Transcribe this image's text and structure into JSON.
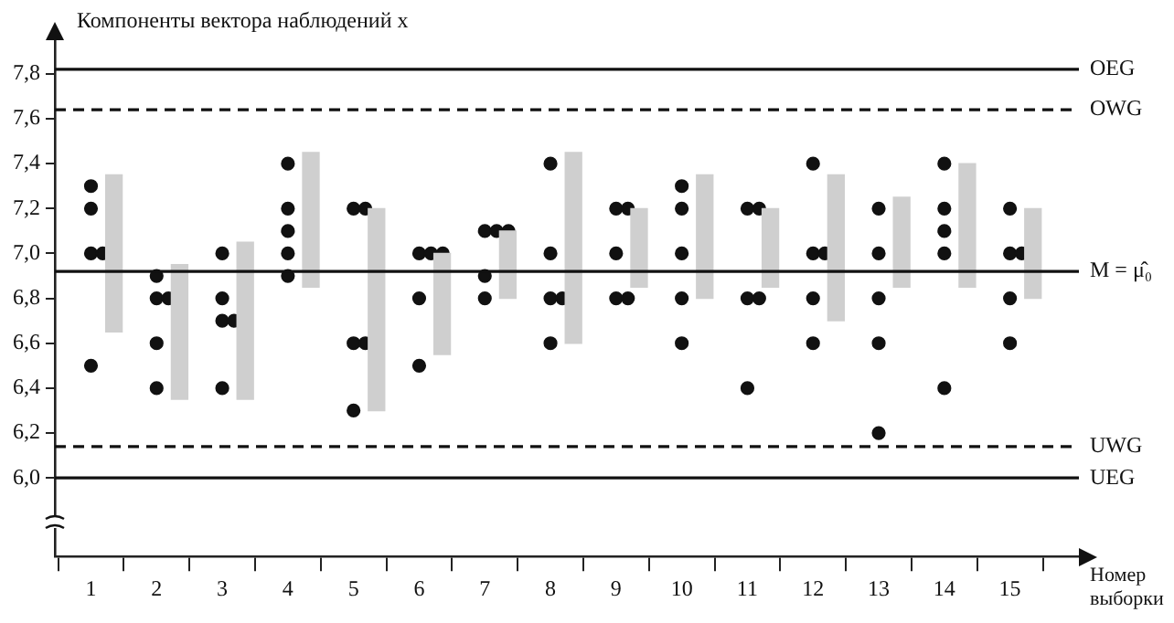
{
  "chart_data": {
    "type": "scatter",
    "ylabel": "Компоненты вектора наблюдений x",
    "xlabel": "Номер выборки",
    "xlim": [
      0.45,
      16.05
    ],
    "xticks": [
      1,
      2,
      3,
      4,
      5,
      6,
      7,
      8,
      9,
      10,
      11,
      12,
      13,
      14,
      15
    ],
    "ylim": [
      5.65,
      7.95
    ],
    "yticks": [
      {
        "value": 6.0,
        "label": "6,0"
      },
      {
        "value": 6.2,
        "label": "6,2"
      },
      {
        "value": 6.4,
        "label": "6,4"
      },
      {
        "value": 6.6,
        "label": "6,6"
      },
      {
        "value": 6.8,
        "label": "6,8"
      },
      {
        "value": 7.0,
        "label": "7,0"
      },
      {
        "value": 7.2,
        "label": "7,2"
      },
      {
        "value": 7.4,
        "label": "7,4"
      },
      {
        "value": 7.6,
        "label": "7,6"
      },
      {
        "value": 7.8,
        "label": "7,8"
      }
    ],
    "grid": false,
    "legend": false,
    "marker": "circle",
    "series": [
      {
        "type": "bar",
        "color": "#cfcfcf",
        "x": [
          1.35,
          2.35,
          3.35,
          4.35,
          5.35,
          6.35,
          7.35,
          8.35,
          9.35,
          10.35,
          11.35,
          12.35,
          13.35,
          14.35,
          15.35
        ],
        "base": [
          6.65,
          6.35,
          6.35,
          6.85,
          6.3,
          6.55,
          6.8,
          6.6,
          6.85,
          6.8,
          6.85,
          6.7,
          6.85,
          6.85,
          6.8
        ],
        "values": [
          0.7,
          0.6,
          0.7,
          0.6,
          0.9,
          0.45,
          0.3,
          0.85,
          0.35,
          0.55,
          0.35,
          0.65,
          0.4,
          0.55,
          0.4
        ]
      },
      {
        "color": "#111111",
        "x": [
          1,
          1,
          1,
          1.18,
          1,
          2,
          2,
          2.18,
          2,
          2,
          3,
          3,
          3,
          3.18,
          3,
          4,
          4,
          4,
          4,
          4,
          5,
          5.18,
          5,
          5.18,
          5,
          6,
          6.18,
          6.36,
          6,
          6,
          7,
          7.18,
          7.36,
          7,
          7,
          8,
          8,
          8,
          8.18,
          8,
          9,
          9.18,
          9,
          9,
          9.18,
          10,
          10,
          10,
          10,
          10,
          11,
          11.18,
          11,
          11.18,
          11,
          12,
          12,
          12.18,
          12,
          12,
          13,
          13,
          13,
          13,
          13,
          14,
          14,
          14,
          14,
          14,
          15,
          15,
          15.18,
          15,
          15
        ],
        "values": [
          7.3,
          7.2,
          7.0,
          7.0,
          6.5,
          6.9,
          6.8,
          6.8,
          6.6,
          6.4,
          7.0,
          6.8,
          6.7,
          6.7,
          6.4,
          7.4,
          7.2,
          7.1,
          7.0,
          6.9,
          7.2,
          7.2,
          6.6,
          6.6,
          6.3,
          7.0,
          7.0,
          7.0,
          6.8,
          6.5,
          7.1,
          7.1,
          7.1,
          6.9,
          6.8,
          7.4,
          7.0,
          6.8,
          6.8,
          6.6,
          7.2,
          7.2,
          7.0,
          6.8,
          6.8,
          7.3,
          7.2,
          7.0,
          6.8,
          6.6,
          7.2,
          7.2,
          6.8,
          6.8,
          6.4,
          7.4,
          7.0,
          7.0,
          6.8,
          6.6,
          7.2,
          7.0,
          6.8,
          6.6,
          6.2,
          7.4,
          7.2,
          7.1,
          7.0,
          6.4,
          7.2,
          7.0,
          7.0,
          6.8,
          6.6
        ]
      }
    ],
    "ref_lines": [
      {
        "axis": "y",
        "value": 7.82,
        "label": "OEG",
        "line_style": "solid",
        "color": "#111111"
      },
      {
        "axis": "y",
        "value": 7.64,
        "label": "OWG",
        "line_style": "dashed",
        "color": "#111111"
      },
      {
        "axis": "y",
        "value": 6.92,
        "label": "M = μ̂₀",
        "line_style": "solid",
        "color": "#111111"
      },
      {
        "axis": "y",
        "value": 6.14,
        "label": "UWG",
        "line_style": "dashed",
        "color": "#111111"
      },
      {
        "axis": "y",
        "value": 6.0,
        "label": "UEG",
        "line_style": "solid",
        "color": "#111111"
      }
    ]
  }
}
